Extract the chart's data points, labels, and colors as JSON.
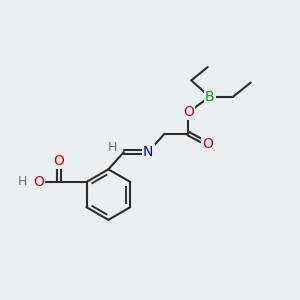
{
  "bg_color": "#eaeff3",
  "atom_colors": {
    "C": "#2d2d2d",
    "H": "#707070",
    "O": "#dd0000",
    "N": "#0000cc",
    "B": "#00aa00"
  },
  "bond_color": "#2d2d2d",
  "bond_width": 1.5,
  "dbo": 0.055,
  "fs": 10,
  "fs2": 9
}
